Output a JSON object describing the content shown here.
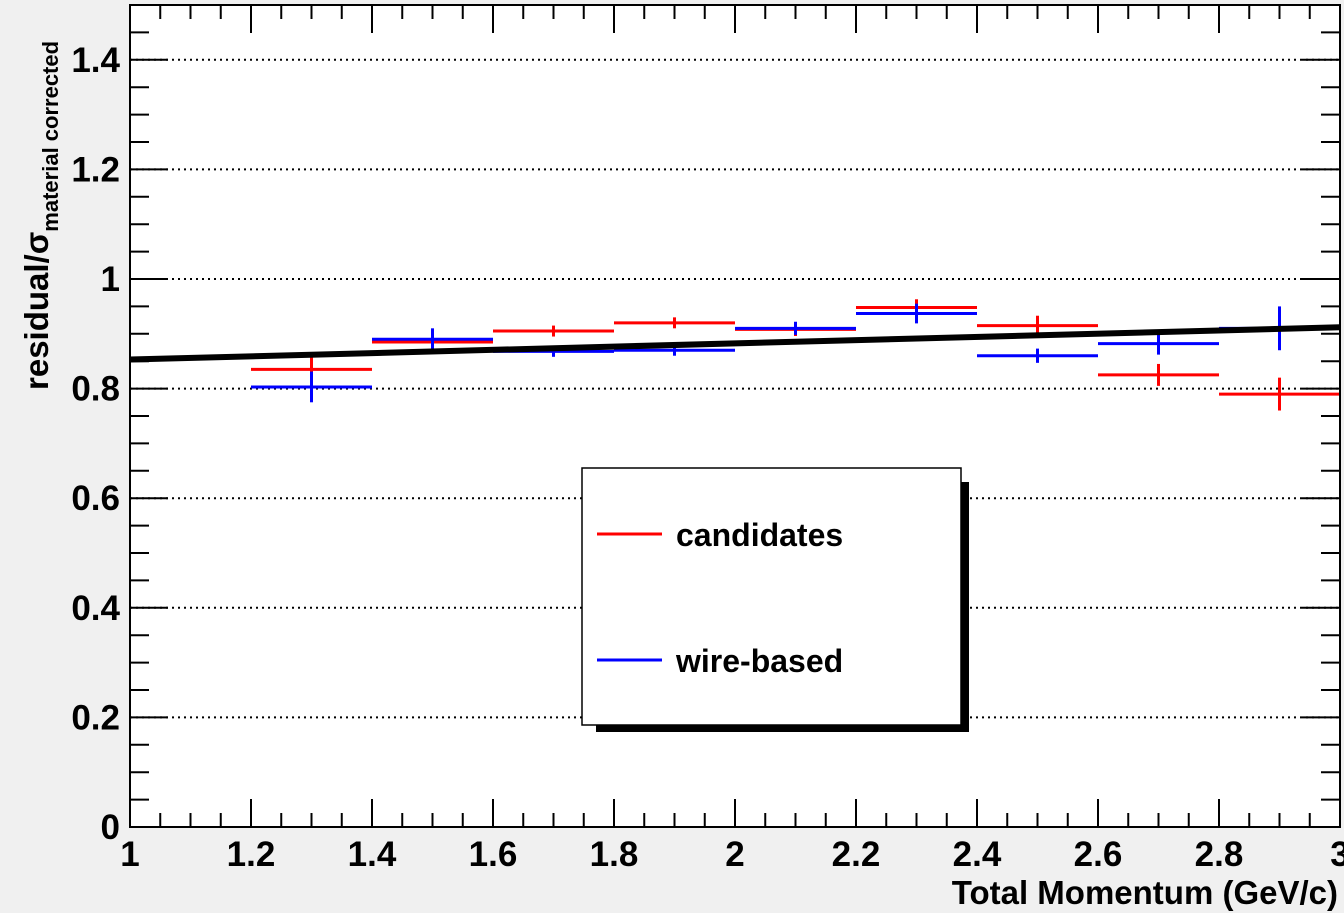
{
  "header_text": "",
  "chart_data": {
    "type": "scatter",
    "title": "",
    "xlabel": "Total Momentum (GeV/c)",
    "ylabel": {
      "main": "residual/σ",
      "subscript": "material corrected"
    },
    "xlim": [
      1,
      3
    ],
    "ylim": [
      0,
      1.5
    ],
    "x_ticks": [
      "1",
      "1.2",
      "1.4",
      "1.6",
      "1.8",
      "2",
      "2.2",
      "2.4",
      "2.6",
      "2.8",
      "3"
    ],
    "y_ticks": [
      "0",
      "0.2",
      "0.4",
      "0.6",
      "0.8",
      "1",
      "1.2",
      "1.4"
    ],
    "grid": {
      "horizontal_dotted": true
    },
    "series": [
      {
        "name": "candidates",
        "color": "#ff0000",
        "points": [
          {
            "x": 1.3,
            "y": 0.835,
            "xerr": 0.1,
            "yerr": 0.025
          },
          {
            "x": 1.5,
            "y": 0.885,
            "xerr": 0.1,
            "yerr": 0.012
          },
          {
            "x": 1.7,
            "y": 0.905,
            "xerr": 0.1,
            "yerr": 0.01
          },
          {
            "x": 1.9,
            "y": 0.92,
            "xerr": 0.1,
            "yerr": 0.01
          },
          {
            "x": 2.1,
            "y": 0.908,
            "xerr": 0.1,
            "yerr": 0.012
          },
          {
            "x": 2.3,
            "y": 0.948,
            "xerr": 0.1,
            "yerr": 0.015
          },
          {
            "x": 2.5,
            "y": 0.915,
            "xerr": 0.1,
            "yerr": 0.018
          },
          {
            "x": 2.7,
            "y": 0.825,
            "xerr": 0.1,
            "yerr": 0.02
          },
          {
            "x": 2.9,
            "y": 0.79,
            "xerr": 0.1,
            "yerr": 0.03
          }
        ]
      },
      {
        "name": "wire-based",
        "color": "#0000ff",
        "points": [
          {
            "x": 1.3,
            "y": 0.803,
            "xerr": 0.1,
            "yerr": 0.028
          },
          {
            "x": 1.5,
            "y": 0.89,
            "xerr": 0.1,
            "yerr": 0.02
          },
          {
            "x": 1.7,
            "y": 0.868,
            "xerr": 0.1,
            "yerr": 0.01
          },
          {
            "x": 1.9,
            "y": 0.87,
            "xerr": 0.1,
            "yerr": 0.01
          },
          {
            "x": 2.1,
            "y": 0.91,
            "xerr": 0.1,
            "yerr": 0.012
          },
          {
            "x": 2.3,
            "y": 0.937,
            "xerr": 0.1,
            "yerr": 0.018
          },
          {
            "x": 2.5,
            "y": 0.86,
            "xerr": 0.1,
            "yerr": 0.013
          },
          {
            "x": 2.7,
            "y": 0.882,
            "xerr": 0.1,
            "yerr": 0.02
          },
          {
            "x": 2.9,
            "y": 0.91,
            "xerr": 0.1,
            "yerr": 0.04
          }
        ]
      }
    ],
    "fit_line": {
      "color": "#000000",
      "x": [
        1,
        3
      ],
      "y": [
        0.853,
        0.912
      ]
    },
    "legend": {
      "position": "center",
      "entries": [
        "candidates",
        "wire-based"
      ]
    }
  }
}
